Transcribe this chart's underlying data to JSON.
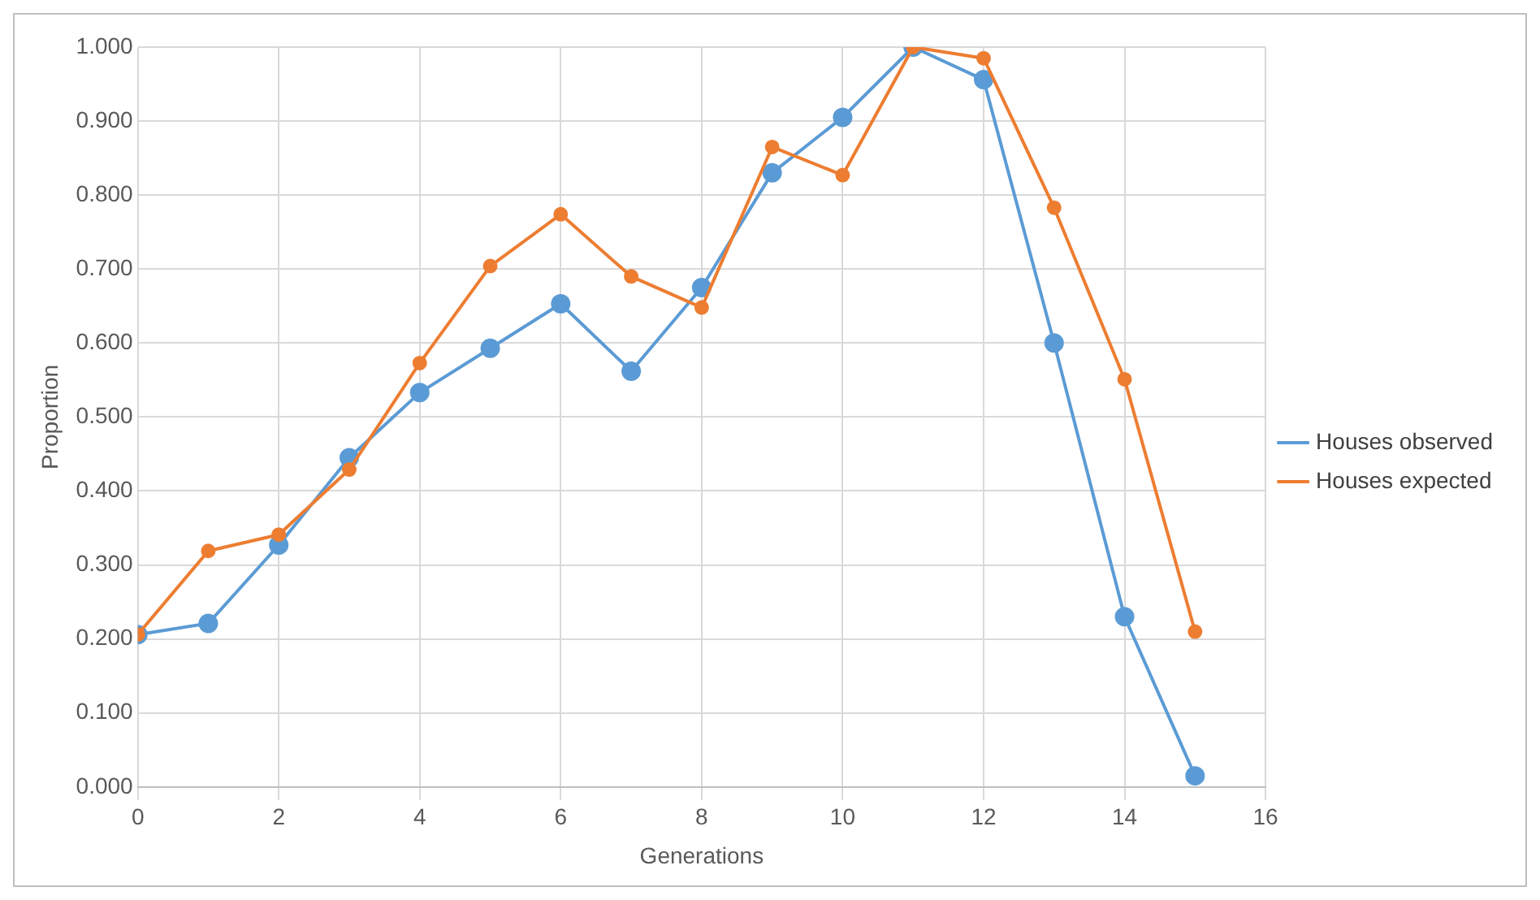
{
  "chart_data": {
    "type": "line",
    "xlabel": "Generations",
    "ylabel": "Proportion",
    "xlim": [
      0,
      16
    ],
    "xticks": [
      0,
      2,
      4,
      6,
      8,
      10,
      12,
      14,
      16
    ],
    "ylim": [
      0,
      1
    ],
    "yticks": [
      {
        "value": 0,
        "label": "0.000"
      },
      {
        "value": 0.1,
        "label": "0.100"
      },
      {
        "value": 0.2,
        "label": "0.200"
      },
      {
        "value": 0.3,
        "label": "0.300"
      },
      {
        "value": 0.4,
        "label": "0.400"
      },
      {
        "value": 0.5,
        "label": "0.500"
      },
      {
        "value": 0.6,
        "label": "0.600"
      },
      {
        "value": 0.7,
        "label": "0.700"
      },
      {
        "value": 0.8,
        "label": "0.800"
      },
      {
        "value": 0.9,
        "label": "0.900"
      },
      {
        "value": 1,
        "label": "1.000"
      }
    ],
    "x": [
      0,
      1,
      2,
      3,
      4,
      5,
      6,
      7,
      8,
      9,
      10,
      11,
      12,
      13,
      14,
      15
    ],
    "series": [
      {
        "name": "Houses observed",
        "color": "#5b9bd5",
        "values": [
          0.206,
          0.221,
          0.327,
          0.445,
          0.533,
          0.593,
          0.653,
          0.562,
          0.675,
          0.83,
          0.905,
          1.0,
          0.956,
          0.6,
          0.23,
          0.015
        ]
      },
      {
        "name": "Houses expected",
        "color": "#ed7d31",
        "values": [
          0.206,
          0.319,
          0.341,
          0.429,
          0.573,
          0.704,
          0.774,
          0.69,
          0.648,
          0.865,
          0.827,
          1.0,
          0.985,
          0.783,
          0.551,
          0.21
        ]
      }
    ],
    "grid": true,
    "legend": "right",
    "marker": "circle",
    "line_style": "solid"
  }
}
